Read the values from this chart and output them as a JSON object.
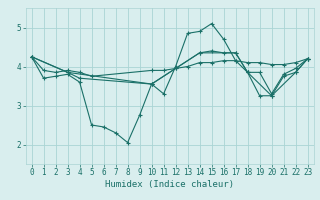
{
  "xlabel": "Humidex (Indice chaleur)",
  "xlim": [
    -0.5,
    23.5
  ],
  "ylim": [
    1.5,
    5.5
  ],
  "yticks": [
    2,
    3,
    4,
    5
  ],
  "xticks": [
    0,
    1,
    2,
    3,
    4,
    5,
    6,
    7,
    8,
    9,
    10,
    11,
    12,
    13,
    14,
    15,
    16,
    17,
    18,
    19,
    20,
    21,
    22,
    23
  ],
  "background_color": "#d9eeee",
  "grid_color": "#aad4d4",
  "line_color": "#1a7068",
  "lines": [
    {
      "x": [
        0,
        1,
        2,
        3,
        4,
        5,
        6,
        7,
        8,
        9,
        10,
        11,
        12,
        13,
        14,
        15,
        16,
        17,
        18,
        19,
        20,
        21,
        22,
        23
      ],
      "y": [
        4.25,
        3.7,
        3.75,
        3.8,
        3.6,
        2.5,
        2.45,
        2.3,
        2.05,
        2.75,
        3.55,
        3.3,
        4.0,
        4.85,
        4.9,
        5.1,
        4.7,
        4.15,
        3.85,
        3.85,
        3.3,
        3.8,
        3.95,
        4.2
      ]
    },
    {
      "x": [
        0,
        1,
        2,
        3,
        4,
        5,
        10,
        11,
        12,
        13,
        14,
        15,
        16,
        17,
        18,
        19,
        20,
        21,
        22,
        23
      ],
      "y": [
        4.25,
        3.9,
        3.85,
        3.9,
        3.85,
        3.75,
        3.9,
        3.9,
        3.95,
        4.0,
        4.1,
        4.1,
        4.15,
        4.15,
        4.1,
        4.1,
        4.05,
        4.05,
        4.1,
        4.2
      ]
    },
    {
      "x": [
        0,
        3,
        4,
        10,
        12,
        14,
        15,
        16,
        17,
        18,
        19,
        20,
        21,
        22,
        23
      ],
      "y": [
        4.25,
        3.85,
        3.7,
        3.55,
        3.95,
        4.35,
        4.4,
        4.35,
        4.35,
        3.85,
        3.25,
        3.25,
        3.75,
        3.85,
        4.2
      ]
    },
    {
      "x": [
        0,
        3,
        10,
        14,
        17,
        18,
        20,
        22,
        23
      ],
      "y": [
        4.25,
        3.85,
        3.55,
        4.35,
        4.35,
        3.85,
        3.25,
        3.85,
        4.2
      ]
    }
  ]
}
